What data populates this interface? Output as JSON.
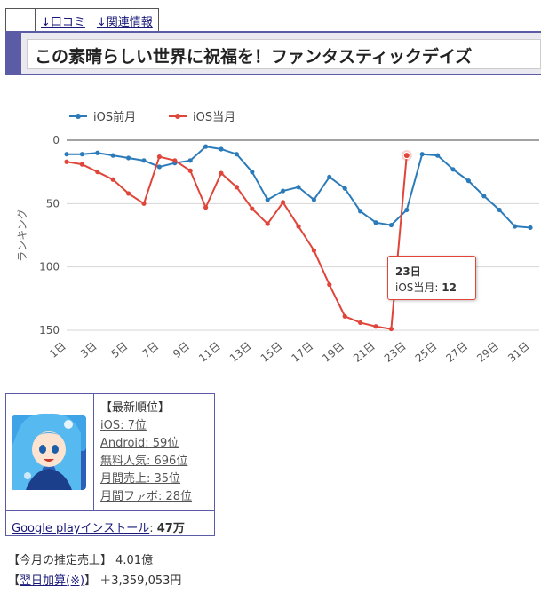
{
  "nav": {
    "reviews": "↓口コミ",
    "related": "↓関連情報"
  },
  "title": "この素晴らしい世界に祝福を！ファンタスティックデイズ",
  "chart_data": {
    "type": "line",
    "y_inverted": true,
    "ylabel": "ランキング",
    "ylim": [
      0,
      150
    ],
    "yticks": [
      0,
      50,
      100,
      150
    ],
    "x": [
      1,
      2,
      3,
      4,
      5,
      6,
      7,
      8,
      9,
      10,
      11,
      12,
      13,
      14,
      15,
      16,
      17,
      18,
      19,
      20,
      21,
      22,
      23,
      24,
      25,
      26,
      27,
      28,
      29,
      30,
      31
    ],
    "xtick_labels": [
      "1日",
      "3日",
      "5日",
      "7日",
      "9日",
      "11日",
      "13日",
      "15日",
      "17日",
      "19日",
      "21日",
      "23日",
      "25日",
      "27日",
      "29日",
      "31日"
    ],
    "legend_position": "top-left",
    "grid": true,
    "series": [
      {
        "name": "iOS前月",
        "color": "#2b7bba",
        "values": [
          11,
          11,
          10,
          12,
          14,
          16,
          21,
          18,
          16,
          5,
          7,
          11,
          25,
          47,
          40,
          37,
          47,
          29,
          38,
          56,
          65,
          67,
          55,
          11,
          12,
          23,
          32,
          44,
          55,
          68,
          69
        ]
      },
      {
        "name": "iOS当月",
        "color": "#e0453a",
        "values": [
          17,
          19,
          25,
          31,
          42,
          50,
          13,
          16,
          24,
          53,
          26,
          37,
          54,
          66,
          49,
          68,
          87,
          114,
          139,
          144,
          147,
          149,
          12,
          null,
          null,
          null,
          null,
          null,
          null,
          null,
          null
        ]
      }
    ],
    "tooltip": {
      "title": "23日",
      "series": "iOS当月",
      "value": "12"
    }
  },
  "info": {
    "latest_header": "【最新順位】",
    "ranks": [
      "iOS: 7位",
      "Android: 59位",
      "無料人気: 696位",
      "月間売上: 35位",
      "月間ファボ: 28位"
    ],
    "install_label": "Google playインストール",
    "install_value": "47万"
  },
  "sales": {
    "estimate_label": "【今月の推定売上】",
    "estimate_value": "4.01億",
    "add_open": "【",
    "add_link": "翌日加算",
    "add_note": "(※)",
    "add_close": "】",
    "add_value": "＋3,359,053円"
  }
}
